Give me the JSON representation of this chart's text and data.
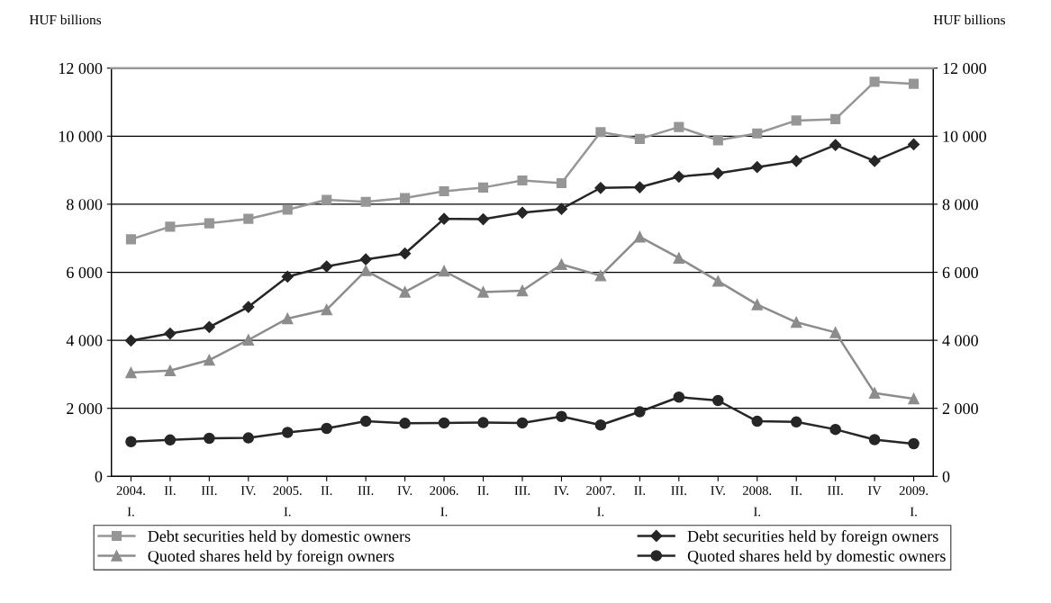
{
  "chart_data": {
    "type": "line",
    "ylabel": "HUF billions",
    "y2label": "HUF billions",
    "categories": [
      "2004.\nI.",
      "II.",
      "III.",
      "IV.",
      "2005.\nI.",
      "II.",
      "III.",
      "IV.",
      "2006.\nI.",
      "II.",
      "III.",
      "IV.",
      "2007.\nI.",
      "II.",
      "III.",
      "IV.",
      "2008.\nI.",
      "II.",
      "III.",
      "IV",
      "2009.\nI."
    ],
    "series": [
      {
        "name": "Debt securities held by domestic owners",
        "color": "#969696",
        "marker": "square",
        "values": [
          6970,
          7340,
          7440,
          7570,
          7840,
          8130,
          8070,
          8180,
          8380,
          8490,
          8700,
          8620,
          10120,
          9920,
          10270,
          9880,
          10080,
          10460,
          10500,
          11600,
          11540
        ]
      },
      {
        "name": "Debt securities held by foreign owners",
        "color": "#262626",
        "marker": "diamond",
        "values": [
          3990,
          4200,
          4390,
          4980,
          5870,
          6170,
          6380,
          6550,
          7570,
          7560,
          7750,
          7860,
          8480,
          8500,
          8810,
          8910,
          9090,
          9270,
          9740,
          9270,
          9760
        ]
      },
      {
        "name": "Quoted shares held by foreign owners",
        "color": "#8c8c8c",
        "marker": "triangle",
        "values": [
          3050,
          3110,
          3420,
          4010,
          4640,
          4900,
          6050,
          5420,
          6040,
          5420,
          5460,
          6230,
          5900,
          7040,
          6420,
          5740,
          5050,
          4530,
          4230,
          2450,
          2280
        ]
      },
      {
        "name": "Quoted shares held by domestic owners",
        "color": "#262626",
        "marker": "circle",
        "values": [
          1020,
          1070,
          1120,
          1130,
          1290,
          1410,
          1620,
          1560,
          1570,
          1580,
          1570,
          1760,
          1510,
          1900,
          2330,
          2230,
          1620,
          1600,
          1380,
          1080,
          960
        ]
      }
    ],
    "ylim": [
      0,
      12000
    ],
    "yticks": [
      0,
      {
        "value": 2000,
        "label": "2 000"
      },
      {
        "value": 4000,
        "label": "4 000"
      },
      {
        "value": 6000,
        "label": "6 000"
      },
      {
        "value": 8000,
        "label": "8 000"
      },
      {
        "value": 10000,
        "label": "10 000"
      },
      {
        "value": 12000,
        "label": "12 000"
      }
    ],
    "y2lim": [
      0,
      12000
    ],
    "y2ticks": [
      0,
      {
        "value": 2000,
        "label": "2 000"
      },
      {
        "value": 4000,
        "label": "4 000"
      },
      {
        "value": 6000,
        "label": "6 000"
      },
      {
        "value": 8000,
        "label": "8 000"
      },
      {
        "value": 10000,
        "label": "10 000"
      },
      {
        "value": 12000,
        "label": "12 000"
      }
    ],
    "grid": "y",
    "legend": "bottom",
    "line_style": "solid"
  }
}
